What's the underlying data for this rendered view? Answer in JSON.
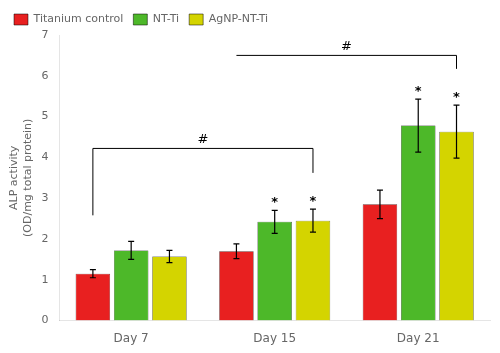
{
  "chart_data": {
    "type": "bar",
    "categories": [
      "Day 7",
      "Day 15",
      "Day 21"
    ],
    "series": [
      {
        "name": "Titanium control",
        "color": "#e82020",
        "values": [
          1.15,
          1.7,
          2.85
        ],
        "errors": [
          0.1,
          0.18,
          0.35
        ]
      },
      {
        "name": "NT-Ti",
        "color": "#4db829",
        "values": [
          1.72,
          2.42,
          4.78
        ],
        "errors": [
          0.22,
          0.28,
          0.65
        ]
      },
      {
        "name": "AgNP-NT-Ti",
        "color": "#d4d400",
        "values": [
          1.57,
          2.45,
          4.63
        ],
        "errors": [
          0.15,
          0.28,
          0.65
        ]
      }
    ],
    "ylabel": "ALP activity\n(OD/mg total protein)",
    "ylim": [
      0.0,
      7.0
    ],
    "yticks": [
      0,
      1,
      2,
      3,
      4,
      5,
      6,
      7
    ],
    "grid": false,
    "legend": "upper left",
    "annotations": [
      {
        "text": "*",
        "series": "NT-Ti",
        "category": "Day 15"
      },
      {
        "text": "*",
        "series": "AgNP-NT-Ti",
        "category": "Day 15"
      },
      {
        "text": "*",
        "series": "NT-Ti",
        "category": "Day 21"
      },
      {
        "text": "*",
        "series": "AgNP-NT-Ti",
        "category": "Day 21"
      },
      {
        "text": "#",
        "y": 4.22,
        "from": {
          "series": "Titanium control",
          "category": "Day 7",
          "y": 2.58
        },
        "to": {
          "series": "AgNP-NT-Ti",
          "category": "Day 15",
          "y": 3.62
        }
      },
      {
        "text": "#",
        "y": 6.5,
        "from": {
          "series": "Titanium control",
          "category": "Day 15",
          "y": 6.5
        },
        "to": {
          "series": "AgNP-NT-Ti",
          "category": "Day 21",
          "y": 6.17
        }
      }
    ]
  }
}
